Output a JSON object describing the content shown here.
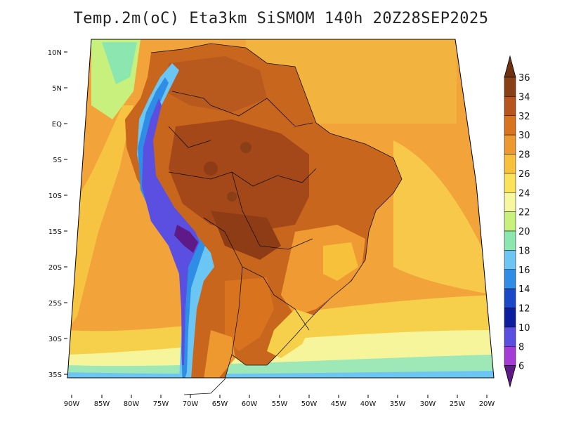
{
  "title": "Temp.2m(oC) Eta3km SiSMOM 140h 20Z28SEP2025",
  "latitude_ticks": [
    "10N",
    "5N",
    "EQ",
    "5S",
    "10S",
    "15S",
    "20S",
    "25S",
    "30S",
    "35S"
  ],
  "longitude_ticks": [
    "90W",
    "85W",
    "80W",
    "75W",
    "70W",
    "65W",
    "60W",
    "55W",
    "50W",
    "45W",
    "40W",
    "35W",
    "30W",
    "25W",
    "20W"
  ],
  "colorbar": {
    "levels": [
      "36",
      "34",
      "32",
      "30",
      "28",
      "26",
      "24",
      "22",
      "20",
      "18",
      "16",
      "14",
      "12",
      "10",
      "8",
      "6"
    ],
    "colors": [
      "#6e3212",
      "#8a3f16",
      "#b8541e",
      "#d9731e",
      "#ee9830",
      "#f7c13c",
      "#fae35a",
      "#f6f79e",
      "#c8f07c",
      "#8ce6b0",
      "#6cc6f4",
      "#2f8de6",
      "#1a48c8",
      "#0c1ea0",
      "#5a4fe0",
      "#a63cd6",
      "#5e1a86"
    ]
  },
  "chart_data": {
    "type": "heatmap",
    "title": "Temp.2m(oC) Eta3km SiSMOM 140h 20Z28SEP2025",
    "variable": "2 m air temperature",
    "units": "oC",
    "model": "Eta3km SiSMOM",
    "forecast_hour": "140h",
    "valid_time": "20Z28SEP2025",
    "lon_range": [
      -91,
      -19
    ],
    "lat_range": [
      -38,
      11
    ],
    "color_scale_min": 6,
    "color_scale_max": 36,
    "color_scale_step": 2
  }
}
